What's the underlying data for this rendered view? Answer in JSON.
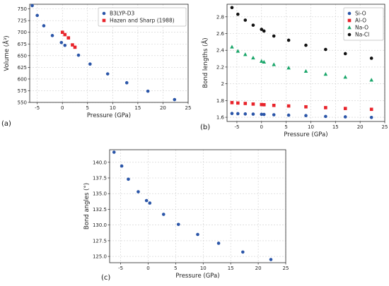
{
  "chart_data": [
    {
      "id": "a",
      "panel_label": "(a)",
      "type": "scatter",
      "xlabel": "Pressure (GPa)",
      "ylabel": "Volume (Å³)",
      "xlim": [
        -6.5,
        25
      ],
      "ylim": [
        550,
        760
      ],
      "xticks": [
        -5,
        0,
        5,
        10,
        15,
        20,
        25
      ],
      "yticks": [
        550,
        575,
        600,
        625,
        650,
        675,
        700,
        725,
        750
      ],
      "grid": true,
      "legend": "top-right",
      "series": [
        {
          "name": "B3LYP-D3",
          "marker": "circle",
          "color": "#2a55a8",
          "x": [
            -6,
            -5,
            -3.7,
            -2,
            -0.2,
            0.5,
            3.2,
            5.5,
            9,
            12.8,
            17,
            22.3
          ],
          "y": [
            757,
            736,
            714,
            693,
            678,
            672,
            651,
            632,
            611,
            592,
            574,
            556
          ]
        },
        {
          "name": "Hazen and Sharp (1988)",
          "marker": "square",
          "color": "#e8232a",
          "x": [
            0,
            0.5,
            1.2,
            2,
            2.5
          ],
          "y": [
            700,
            695,
            688,
            673,
            668
          ]
        }
      ]
    },
    {
      "id": "b",
      "panel_label": "(b)",
      "type": "scatter",
      "xlabel": "Pressure (GPa)",
      "ylabel": "Bond lengths (Å)",
      "xlim": [
        -7,
        25
      ],
      "ylim": [
        1.55,
        2.95
      ],
      "xticks": [
        -5,
        0,
        5,
        10,
        15,
        20,
        25
      ],
      "yticks": [
        1.6,
        1.8,
        2.0,
        2.2,
        2.4,
        2.6,
        2.8
      ],
      "grid": true,
      "legend": "top-right",
      "series": [
        {
          "name": "Si-O",
          "marker": "circle",
          "color": "#2a55a8",
          "x": [
            -6,
            -4.8,
            -3.3,
            -1.7,
            0,
            0.5,
            2.5,
            5.5,
            9,
            13,
            17,
            22.3
          ],
          "y": [
            1.645,
            1.643,
            1.64,
            1.638,
            1.635,
            1.634,
            1.63,
            1.625,
            1.62,
            1.61,
            1.605,
            1.598
          ]
        },
        {
          "name": "Al-O",
          "marker": "square",
          "color": "#e8232a",
          "x": [
            -6,
            -4.8,
            -3.3,
            -1.7,
            0,
            0.5,
            2.5,
            5.5,
            9,
            13,
            17,
            22.3
          ],
          "y": [
            1.775,
            1.77,
            1.765,
            1.758,
            1.752,
            1.75,
            1.742,
            1.735,
            1.725,
            1.715,
            1.705,
            1.695
          ]
        },
        {
          "name": "Na-O",
          "marker": "triangle",
          "color": "#1aa66a",
          "x": [
            -6,
            -4.8,
            -3.3,
            -1.7,
            0,
            0.5,
            2.5,
            5.5,
            9,
            13,
            17,
            22.3
          ],
          "y": [
            2.44,
            2.39,
            2.35,
            2.31,
            2.27,
            2.26,
            2.23,
            2.19,
            2.15,
            2.115,
            2.08,
            2.045
          ]
        },
        {
          "name": "Na-Cl",
          "marker": "circle",
          "color": "#111111",
          "x": [
            -6,
            -4.8,
            -3.3,
            -1.7,
            0,
            0.5,
            2.5,
            5.5,
            9,
            13,
            17,
            22.3
          ],
          "y": [
            2.91,
            2.83,
            2.76,
            2.7,
            2.65,
            2.63,
            2.57,
            2.52,
            2.46,
            2.41,
            2.36,
            2.305
          ]
        }
      ]
    },
    {
      "id": "c",
      "panel_label": "(c)",
      "type": "scatter",
      "xlabel": "Pressure (GPa)",
      "ylabel": "Bond angles (°)",
      "xlim": [
        -7,
        25
      ],
      "ylim": [
        124,
        142
      ],
      "xticks": [
        -5,
        0,
        5,
        10,
        15,
        20,
        25
      ],
      "yticks": [
        125.0,
        127.5,
        130.0,
        132.5,
        135.0,
        137.5,
        140.0
      ],
      "ytick_labels": [
        "125.0",
        "127.5",
        "130.0",
        "132.5",
        "135.0",
        "137.5",
        "140.0"
      ],
      "grid": true,
      "series": [
        {
          "marker": "circle",
          "color": "#2a55a8",
          "x": [
            -6.2,
            -4.8,
            -3.6,
            -1.8,
            -0.3,
            0.3,
            2.8,
            5.5,
            9,
            12.8,
            17.2,
            22.3
          ],
          "y": [
            141.6,
            139.4,
            137.3,
            135.3,
            133.9,
            133.5,
            131.7,
            130.1,
            128.5,
            127.1,
            125.7,
            124.5
          ]
        }
      ]
    }
  ]
}
